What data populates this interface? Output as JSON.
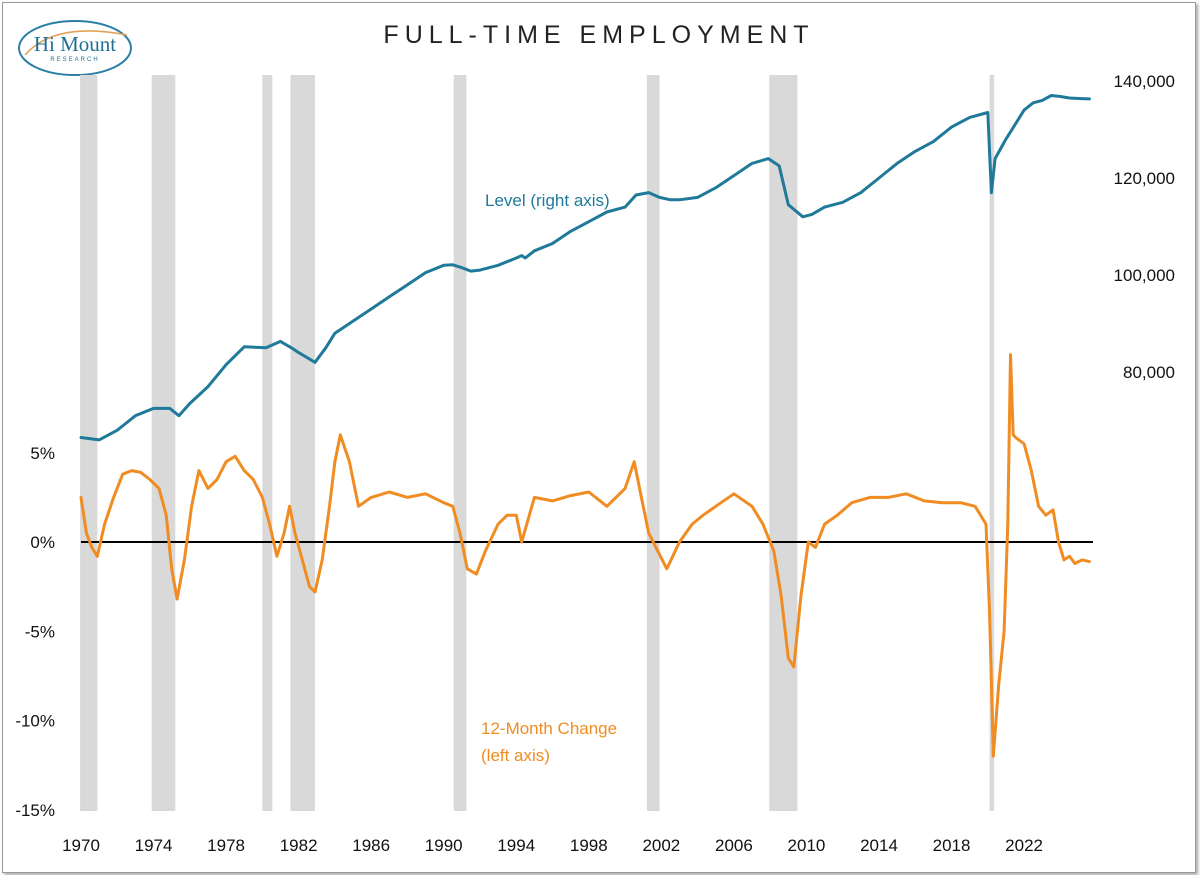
{
  "logo": {
    "name": "Hi Mount",
    "subtitle": "RESEARCH"
  },
  "chart_data": {
    "type": "line",
    "title": "FULL-TIME EMPLOYMENT",
    "x_unit": "year",
    "xlim": [
      1970,
      2025.8
    ],
    "x_ticks": [
      "1970",
      "1974",
      "1978",
      "1982",
      "1986",
      "1990",
      "1994",
      "1998",
      "2002",
      "2006",
      "2010",
      "2014",
      "2018",
      "2022"
    ],
    "left_axis": {
      "ticks": [
        "5%",
        "0%",
        "-5%",
        "-10%",
        "-15%"
      ],
      "tick_values": [
        5,
        0,
        -5,
        -10,
        -15
      ],
      "ylim": [
        -15,
        5
      ]
    },
    "right_axis": {
      "ticks": [
        "140,000",
        "120,000",
        "100,000",
        "80,000"
      ],
      "tick_values": [
        140000,
        120000,
        100000,
        80000
      ]
    },
    "recessions": [
      [
        1969.95,
        1970.9
      ],
      [
        1973.9,
        1975.2
      ],
      [
        1980.0,
        1980.55
      ],
      [
        1981.55,
        1982.9
      ],
      [
        1990.55,
        1991.25
      ],
      [
        2001.2,
        2001.9
      ],
      [
        2007.95,
        2009.5
      ],
      [
        2020.1,
        2020.35
      ]
    ],
    "zero_line": 0,
    "annotations": [
      {
        "text": "Level (right axis)",
        "color": "#1f7a99"
      },
      {
        "text": "12-Month Change",
        "color": "#f08c22"
      },
      {
        "text": "(left axis)",
        "color": "#f08c22"
      }
    ],
    "series": [
      {
        "color": "#1f7a99",
        "axis": "right",
        "x": [
          1970,
          1971,
          1972,
          1973,
          1974,
          1974.9,
          1975.4,
          1976,
          1977,
          1978,
          1979,
          1980.2,
          1981,
          1981.6,
          1982,
          1982.9,
          1983.5,
          1984,
          1985,
          1986,
          1987,
          1988,
          1989,
          1990,
          1990.5,
          1991,
          1991.5,
          1992,
          1993,
          1994,
          1994.3,
          1994.5,
          1995,
          1996,
          1997,
          1998,
          1999,
          2000,
          2000.6,
          2001.3,
          2001.9,
          2002.5,
          2003,
          2004,
          2005,
          2006,
          2007,
          2007.9,
          2008.5,
          2009,
          2009.8,
          2010.3,
          2011,
          2012,
          2013,
          2014,
          2015,
          2016,
          2017,
          2018,
          2019,
          2020.0,
          2020.2,
          2020.4,
          2020.7,
          2021,
          2021.5,
          2022,
          2022.5,
          2023,
          2023.5,
          2024,
          2024.5,
          2025,
          2025.6
        ],
        "y": [
          66500,
          66000,
          68000,
          71000,
          72500,
          72500,
          71000,
          73500,
          77000,
          81500,
          85200,
          85000,
          86300,
          85000,
          84000,
          82000,
          85000,
          88000,
          90500,
          93000,
          95500,
          98000,
          100500,
          102000,
          102100,
          101500,
          100800,
          101000,
          102000,
          103500,
          104000,
          103500,
          105000,
          106500,
          109000,
          111000,
          113000,
          114000,
          116500,
          117000,
          116000,
          115500,
          115500,
          116000,
          118000,
          120500,
          123000,
          124000,
          122500,
          114500,
          112000,
          112500,
          114000,
          115000,
          117000,
          120000,
          123000,
          125500,
          127500,
          130500,
          132500,
          133500,
          117000,
          124000,
          126000,
          128000,
          131000,
          134000,
          135500,
          136000,
          137000,
          136800,
          136500,
          136400,
          136300
        ]
      },
      {
        "color": "#f08c22",
        "axis": "left",
        "x": [
          1970,
          1970.3,
          1970.6,
          1970.9,
          1971.3,
          1971.8,
          1972.3,
          1972.8,
          1973.3,
          1973.8,
          1974.3,
          1974.7,
          1975.0,
          1975.3,
          1975.7,
          1976.1,
          1976.5,
          1977,
          1977.5,
          1978,
          1978.5,
          1979,
          1979.5,
          1980,
          1980.4,
          1980.8,
          1981.2,
          1981.5,
          1981.8,
          1982.2,
          1982.6,
          1982.9,
          1983.3,
          1983.7,
          1984.0,
          1984.3,
          1984.8,
          1985.3,
          1986,
          1987,
          1988,
          1989,
          1990,
          1990.5,
          1990.9,
          1991.3,
          1991.8,
          1992.3,
          1993,
          1993.5,
          1994,
          1994.3,
          1995,
          1996,
          1997,
          1998,
          1999,
          2000,
          2000.5,
          2000.9,
          2001.3,
          2001.8,
          2002.3,
          2003,
          2003.7,
          2004.3,
          2005,
          2006,
          2007,
          2007.6,
          2008.2,
          2008.6,
          2009.0,
          2009.3,
          2009.7,
          2010.1,
          2010.5,
          2011,
          2011.7,
          2012.5,
          2013.5,
          2014.5,
          2015.5,
          2016.5,
          2017.5,
          2018.5,
          2019.3,
          2019.9,
          2020.1,
          2020.3,
          2020.6,
          2020.9,
          2021.1,
          2021.25,
          2021.4,
          2021.6,
          2022,
          2022.4,
          2022.8,
          2023.2,
          2023.6,
          2023.9,
          2024.2,
          2024.5,
          2024.8,
          2025.2,
          2025.6
        ],
        "y": [
          2.5,
          0.5,
          -0.3,
          -0.8,
          1.0,
          2.5,
          3.8,
          4.0,
          3.9,
          3.5,
          3.0,
          1.5,
          -1.5,
          -3.2,
          -1.0,
          2.0,
          4.0,
          3.0,
          3.5,
          4.5,
          4.8,
          4.0,
          3.5,
          2.5,
          1.0,
          -0.8,
          0.5,
          2.0,
          0.5,
          -1.0,
          -2.5,
          -2.8,
          -1.0,
          2.0,
          4.5,
          6.0,
          4.5,
          2.0,
          2.5,
          2.8,
          2.5,
          2.7,
          2.2,
          2.0,
          0.5,
          -1.5,
          -1.8,
          -0.5,
          1.0,
          1.5,
          1.5,
          0.0,
          2.5,
          2.3,
          2.6,
          2.8,
          2.0,
          3.0,
          4.5,
          2.5,
          0.5,
          -0.5,
          -1.5,
          0.0,
          1.0,
          1.5,
          2.0,
          2.7,
          2.0,
          1.0,
          -0.5,
          -3.0,
          -6.5,
          -7.0,
          -3.0,
          0.0,
          -0.3,
          1.0,
          1.5,
          2.2,
          2.5,
          2.5,
          2.7,
          2.3,
          2.2,
          2.2,
          2.0,
          1.0,
          -4.0,
          -12.0,
          -8.0,
          -5.0,
          1.0,
          10.5,
          6.0,
          5.8,
          5.5,
          4.0,
          2.0,
          1.5,
          1.8,
          0.0,
          -1.0,
          -0.8,
          -1.2,
          -1.0,
          -1.1
        ]
      }
    ]
  }
}
